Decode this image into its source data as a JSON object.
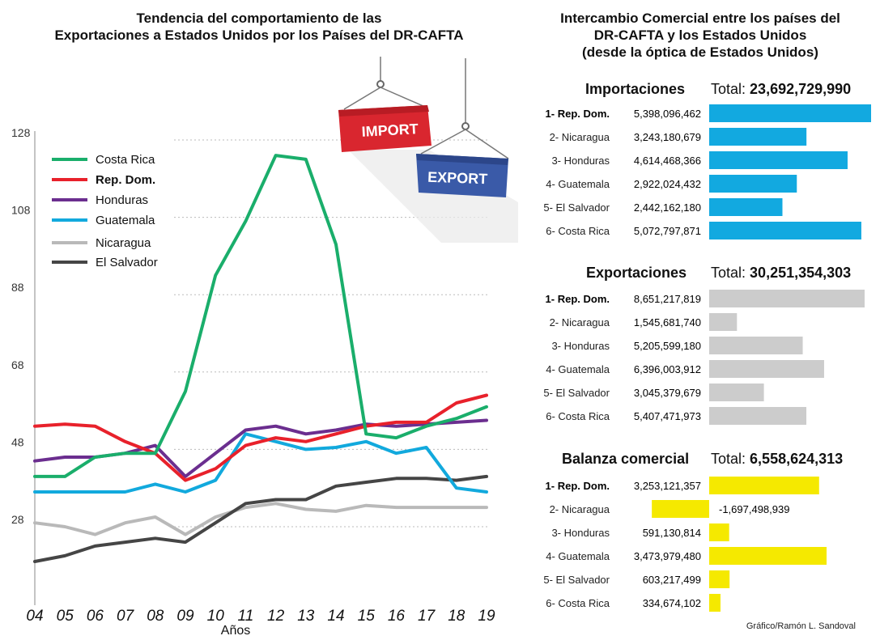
{
  "line_chart_title_l1": "Tendencia del comportamiento de las",
  "line_chart_title_l2": "Exportaciones a Estados Unidos por los Países del DR-CAFTA",
  "right_title_l1": "Intercambio Comercial entre los países del",
  "right_title_l2": "DR-CAFTA y los Estados Unidos",
  "right_title_l3": "(desde la óptica de Estados Unidos)",
  "containers": {
    "import_label": "IMPORT",
    "export_label": "EXPORT"
  },
  "colors": {
    "costa_rica": "#1aae6b",
    "rep_dom": "#e8212b",
    "honduras": "#6b2e8f",
    "guatemala": "#12a9dd",
    "nicaragua": "#b9b9b9",
    "el_salvador": "#454545",
    "import_bar": "#12a9e0",
    "export_bar": "#cccccc",
    "balance_bar": "#f5e900",
    "import_box": "#d9262f",
    "export_box": "#3a5aa8"
  },
  "credit": "Gráfico/Ramón L. Sandoval",
  "chart_data": [
    {
      "type": "line",
      "title": "Tendencia del comportamiento de las Exportaciones a Estados Unidos por los Países del DR-CAFTA",
      "xlabel": "Años",
      "ylabel": "",
      "x": [
        "04",
        "05",
        "06",
        "07",
        "08",
        "09",
        "10",
        "11",
        "12",
        "13",
        "14",
        "15",
        "16",
        "17",
        "18",
        "19"
      ],
      "yticks": [
        28,
        48,
        68,
        88,
        108,
        128
      ],
      "ylim": [
        9,
        128
      ],
      "grid": "horizontal dotted",
      "legend": "top-left",
      "series": [
        {
          "name": "Costa Rica",
          "color_key": "costa_rica",
          "values": [
            41,
            41,
            46,
            47,
            47,
            63,
            93,
            107,
            124,
            123,
            101,
            52,
            51,
            54,
            56,
            59
          ]
        },
        {
          "name": "Rep. Dom.",
          "color_key": "rep_dom",
          "bold": true,
          "values": [
            54,
            54.5,
            54,
            50,
            47,
            40,
            43,
            49,
            51,
            50,
            52,
            54,
            55,
            55,
            60,
            62
          ]
        },
        {
          "name": "Honduras",
          "color_key": "honduras",
          "values": [
            45,
            46,
            46,
            47,
            49,
            41,
            47,
            53,
            54,
            52,
            53,
            54.5,
            54,
            54.5,
            55,
            55.5
          ]
        },
        {
          "name": "Guatemala",
          "color_key": "guatemala",
          "values": [
            37,
            37,
            37,
            37,
            39,
            37,
            40,
            52,
            50,
            48,
            48.5,
            50,
            47,
            48.5,
            38,
            37
          ]
        },
        {
          "name": "Nicaragua",
          "color_key": "nicaragua",
          "values": [
            29,
            28,
            26,
            29,
            30.5,
            26,
            30.5,
            33,
            34,
            32.5,
            32,
            33.5,
            33,
            33,
            33,
            33
          ]
        },
        {
          "name": "El Salvador",
          "color_key": "el_salvador",
          "values": [
            19,
            20.5,
            23,
            24,
            25,
            24,
            29,
            34,
            35,
            35,
            38.5,
            39.5,
            40.5,
            40.5,
            40,
            41
          ]
        }
      ]
    },
    {
      "type": "bar",
      "section_key": "importaciones",
      "title": "Importaciones",
      "total_label": "Total:",
      "total": "23,692,729,990",
      "color_key": "import_bar",
      "categories": [
        "1- Rep. Dom.",
        "2- Nicaragua",
        "3- Honduras",
        "4- Guatemala",
        "5- El Salvador",
        "6- Costa Rica"
      ],
      "value_labels": [
        "5,398,096,462",
        "3,243,180,679",
        "4,614,468,366",
        "2,922,024,432",
        "2,442,162,180",
        "5,072,797,871"
      ],
      "values": [
        5398096462,
        3243180679,
        4614468366,
        2922024432,
        2442162180,
        5072797871
      ],
      "bold_first": true
    },
    {
      "type": "bar",
      "section_key": "exportaciones",
      "title": "Exportaciones",
      "total_label": "Total:",
      "total": "30,251,354,303",
      "color_key": "export_bar",
      "categories": [
        "1- Rep. Dom.",
        "2- Nicaragua",
        "3- Honduras",
        "4- Guatemala",
        "5- El Salvador",
        "6- Costa Rica"
      ],
      "value_labels": [
        "8,651,217,819",
        "1,545,681,740",
        "5,205,599,180",
        "6,396,003,912",
        "3,045,379,679",
        "5,407,471,973"
      ],
      "values": [
        8651217819,
        1545681740,
        5205599180,
        6396003912,
        3045379679,
        5407471973
      ],
      "bold_first": true
    },
    {
      "type": "bar",
      "section_key": "balanza",
      "title": "Balanza comercial",
      "total_label": "Total:",
      "total": "6,558,624,313",
      "color_key": "balance_bar",
      "categories": [
        "1- Rep. Dom.",
        "2- Nicaragua",
        "3- Honduras",
        "4- Guatemala",
        "5- El Salvador",
        "6- Costa Rica"
      ],
      "value_labels": [
        "3,253,121,357",
        "-1,697,498,939",
        "591,130,814",
        "3,473,979,480",
        "603,217,499",
        "334,674,102"
      ],
      "values": [
        3253121357,
        -1697498939,
        591130814,
        3473979480,
        603217499,
        334674102
      ],
      "bold_first": true
    }
  ]
}
